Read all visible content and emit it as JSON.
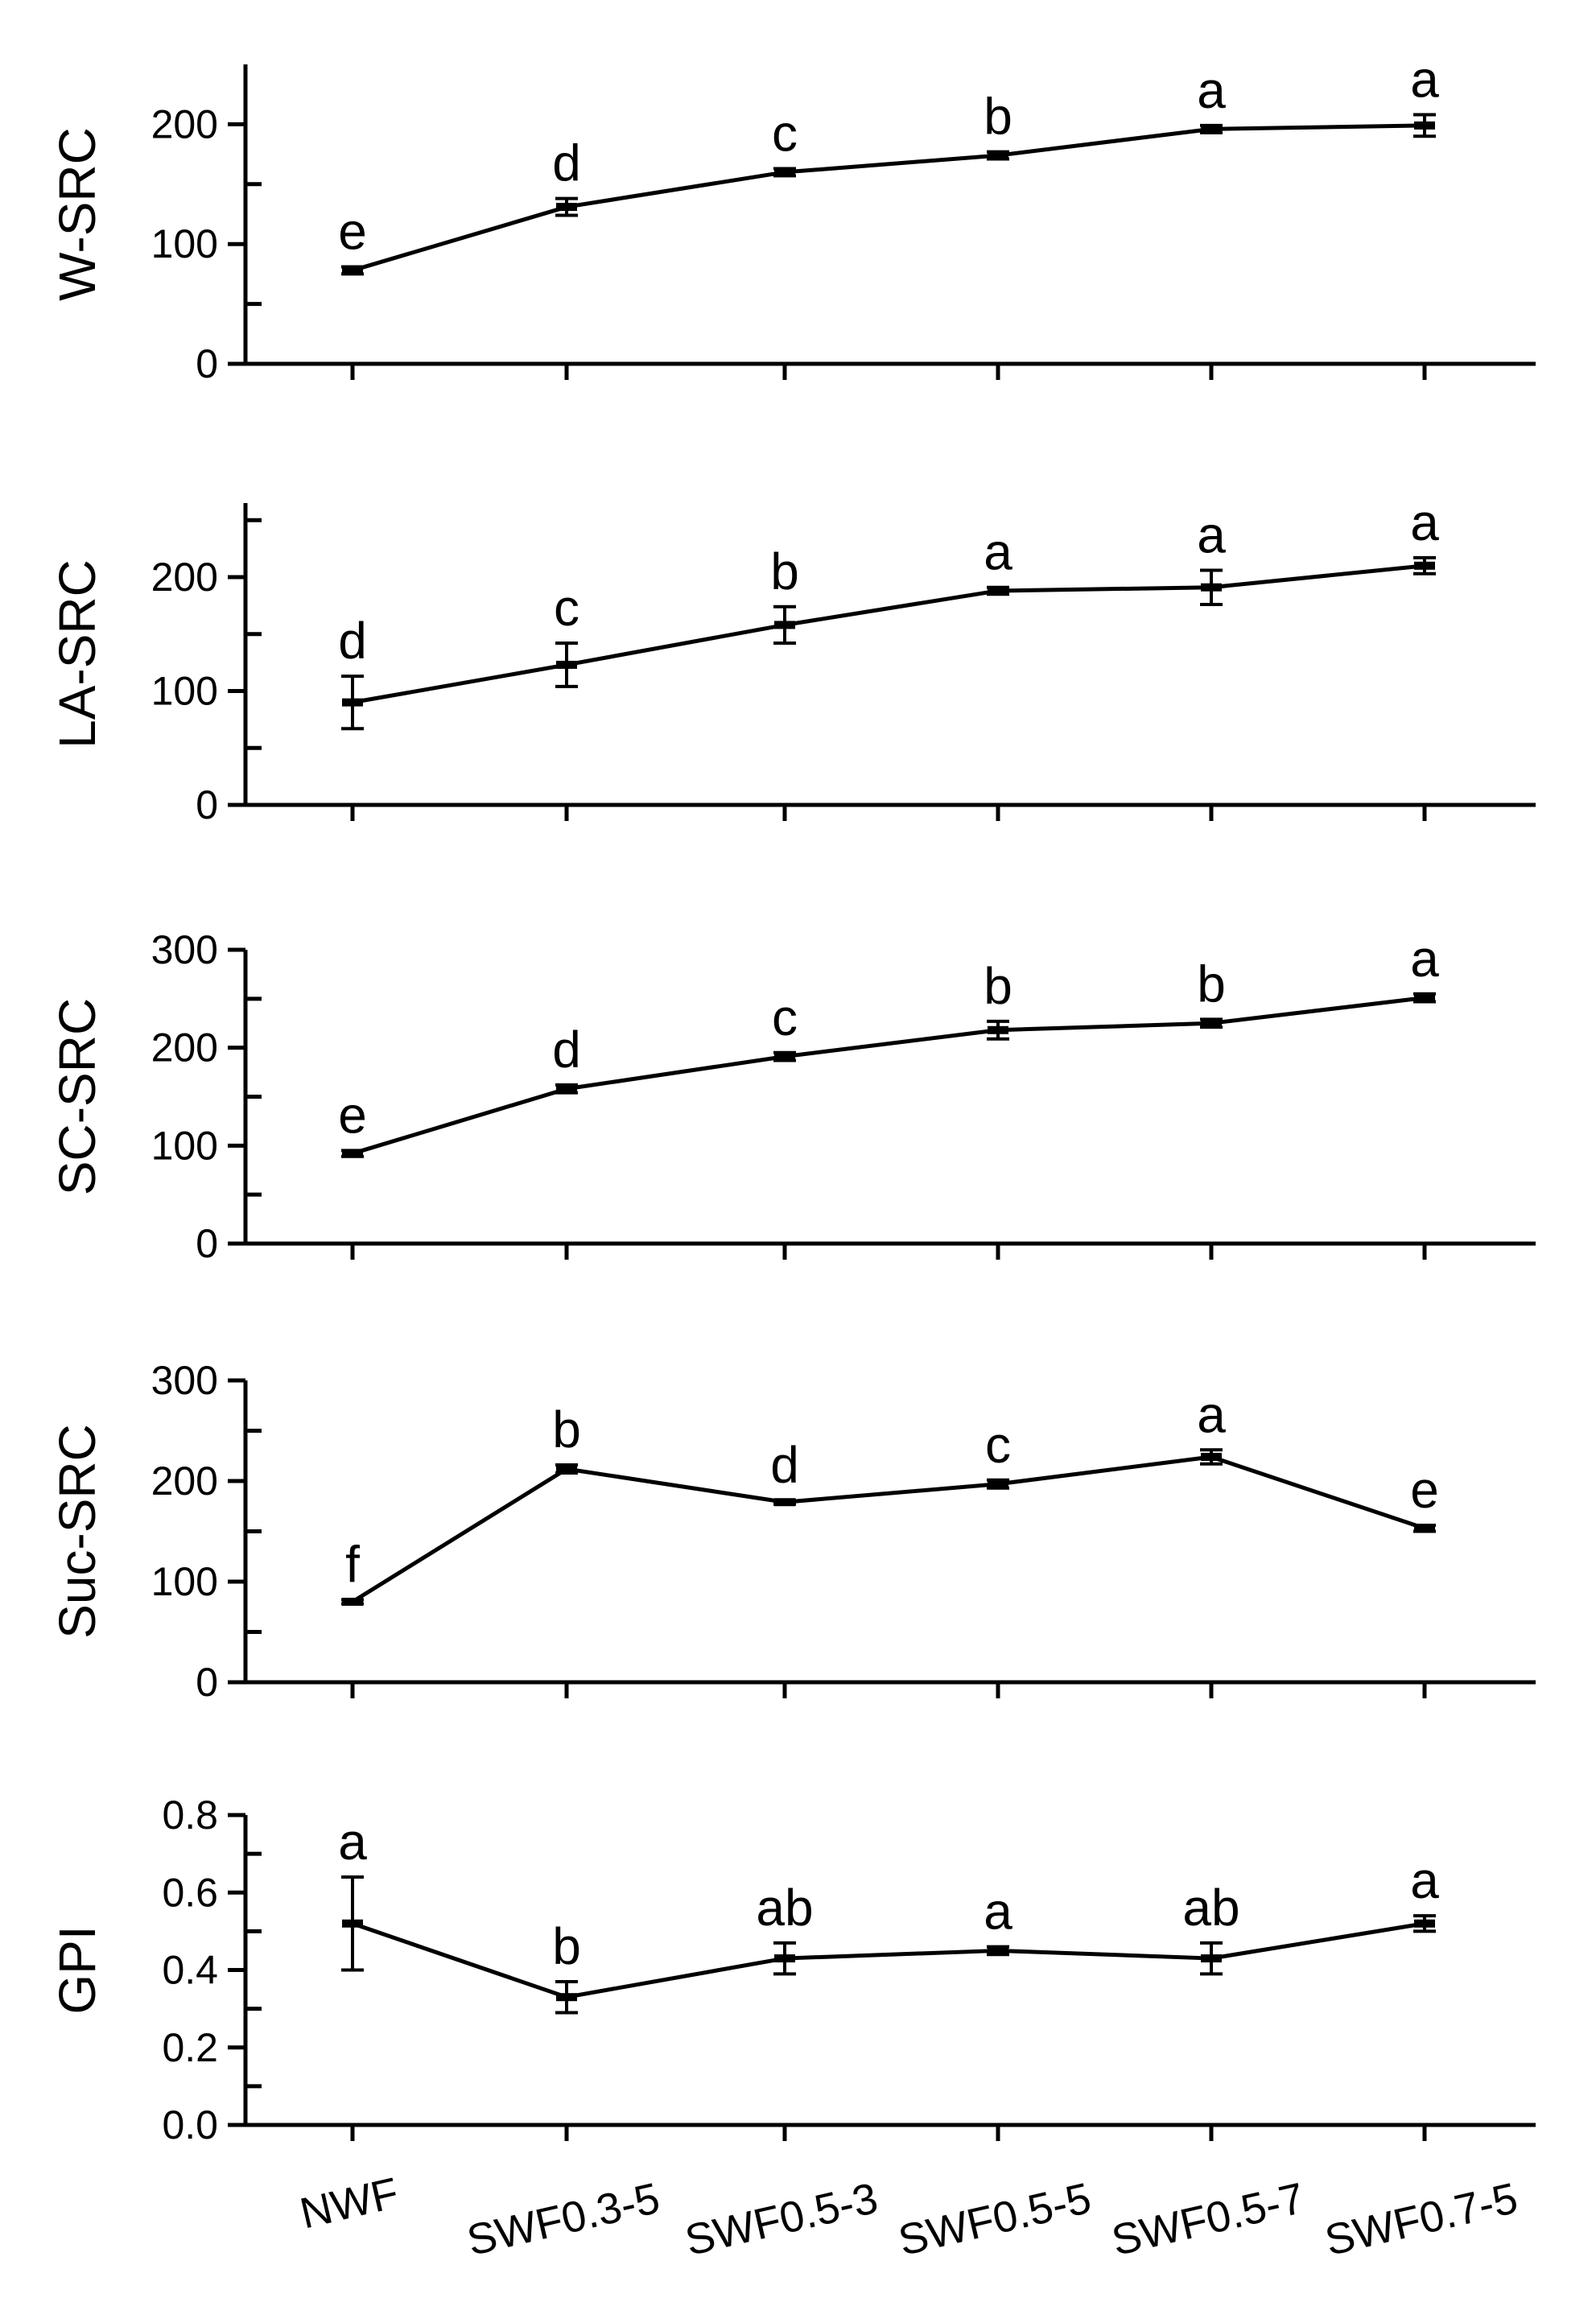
{
  "chart_data": [
    {
      "type": "line",
      "categories": [
        "NWF",
        "SWF0.3-5",
        "SWF0.5-3",
        "SWF0.5-5",
        "SWF0.5-7",
        "SWF0.7-5"
      ],
      "ylabel": "W-SRC",
      "ylim": [
        0,
        250
      ],
      "yticks": [
        "0",
        "100",
        "200"
      ],
      "series": [
        {
          "values": [
            78,
            131,
            160,
            174,
            196,
            199
          ],
          "errors": [
            3,
            7,
            3,
            3,
            3,
            9
          ]
        }
      ],
      "annotations": [
        "e",
        "d",
        "c",
        "b",
        "a",
        "a"
      ],
      "grid": false
    },
    {
      "type": "line",
      "categories": [
        "NWF",
        "SWF0.3-5",
        "SWF0.5-3",
        "SWF0.5-5",
        "SWF0.5-7",
        "SWF0.7-5"
      ],
      "ylabel": "LA-SRC",
      "ylim": [
        0,
        265
      ],
      "yticks": [
        "0",
        "100",
        "200"
      ],
      "series": [
        {
          "values": [
            90,
            123,
            158,
            188,
            191,
            210
          ],
          "errors": [
            23,
            19,
            16,
            3,
            15,
            7
          ]
        }
      ],
      "annotations": [
        "d",
        "c",
        "b",
        "a",
        "a",
        "a"
      ],
      "grid": false
    },
    {
      "type": "line",
      "categories": [
        "NWF",
        "SWF0.3-5",
        "SWF0.5-3",
        "SWF0.5-5",
        "SWF0.5-7",
        "SWF0.7-5"
      ],
      "ylabel": "SC-SRC",
      "ylim": [
        0,
        300
      ],
      "yticks": [
        "0",
        "100",
        "200",
        "300"
      ],
      "series": [
        {
          "values": [
            92,
            158,
            191,
            218,
            225,
            251
          ],
          "errors": [
            3,
            4,
            4,
            9,
            4,
            4
          ]
        }
      ],
      "annotations": [
        "e",
        "d",
        "c",
        "b",
        "b",
        "a"
      ],
      "grid": false
    },
    {
      "type": "line",
      "categories": [
        "NWF",
        "SWF0.3-5",
        "SWF0.5-3",
        "SWF0.5-5",
        "SWF0.5-7",
        "SWF0.7-5"
      ],
      "ylabel": "Suc-SRC",
      "ylim": [
        0,
        300
      ],
      "yticks": [
        "0",
        "100",
        "200",
        "300"
      ],
      "series": [
        {
          "values": [
            80,
            212,
            179,
            197,
            224,
            153
          ],
          "errors": [
            2,
            4,
            2,
            4,
            7,
            3
          ]
        }
      ],
      "annotations": [
        "f",
        "b",
        "d",
        "c",
        "a",
        "e"
      ],
      "grid": false
    },
    {
      "type": "line",
      "categories": [
        "NWF",
        "SWF0.3-5",
        "SWF0.5-3",
        "SWF0.5-5",
        "SWF0.5-7",
        "SWF0.7-5"
      ],
      "ylabel": "GPI",
      "ylim": [
        0,
        0.8
      ],
      "yticks": [
        "0.0",
        "0.2",
        "0.4",
        "0.6",
        "0.8"
      ],
      "series": [
        {
          "values": [
            0.52,
            0.33,
            0.43,
            0.45,
            0.43,
            0.52
          ],
          "errors": [
            0.12,
            0.04,
            0.04,
            0.01,
            0.04,
            0.02
          ]
        }
      ],
      "annotations": [
        "a",
        "b",
        "ab",
        "a",
        "ab",
        "a"
      ],
      "grid": false
    }
  ]
}
